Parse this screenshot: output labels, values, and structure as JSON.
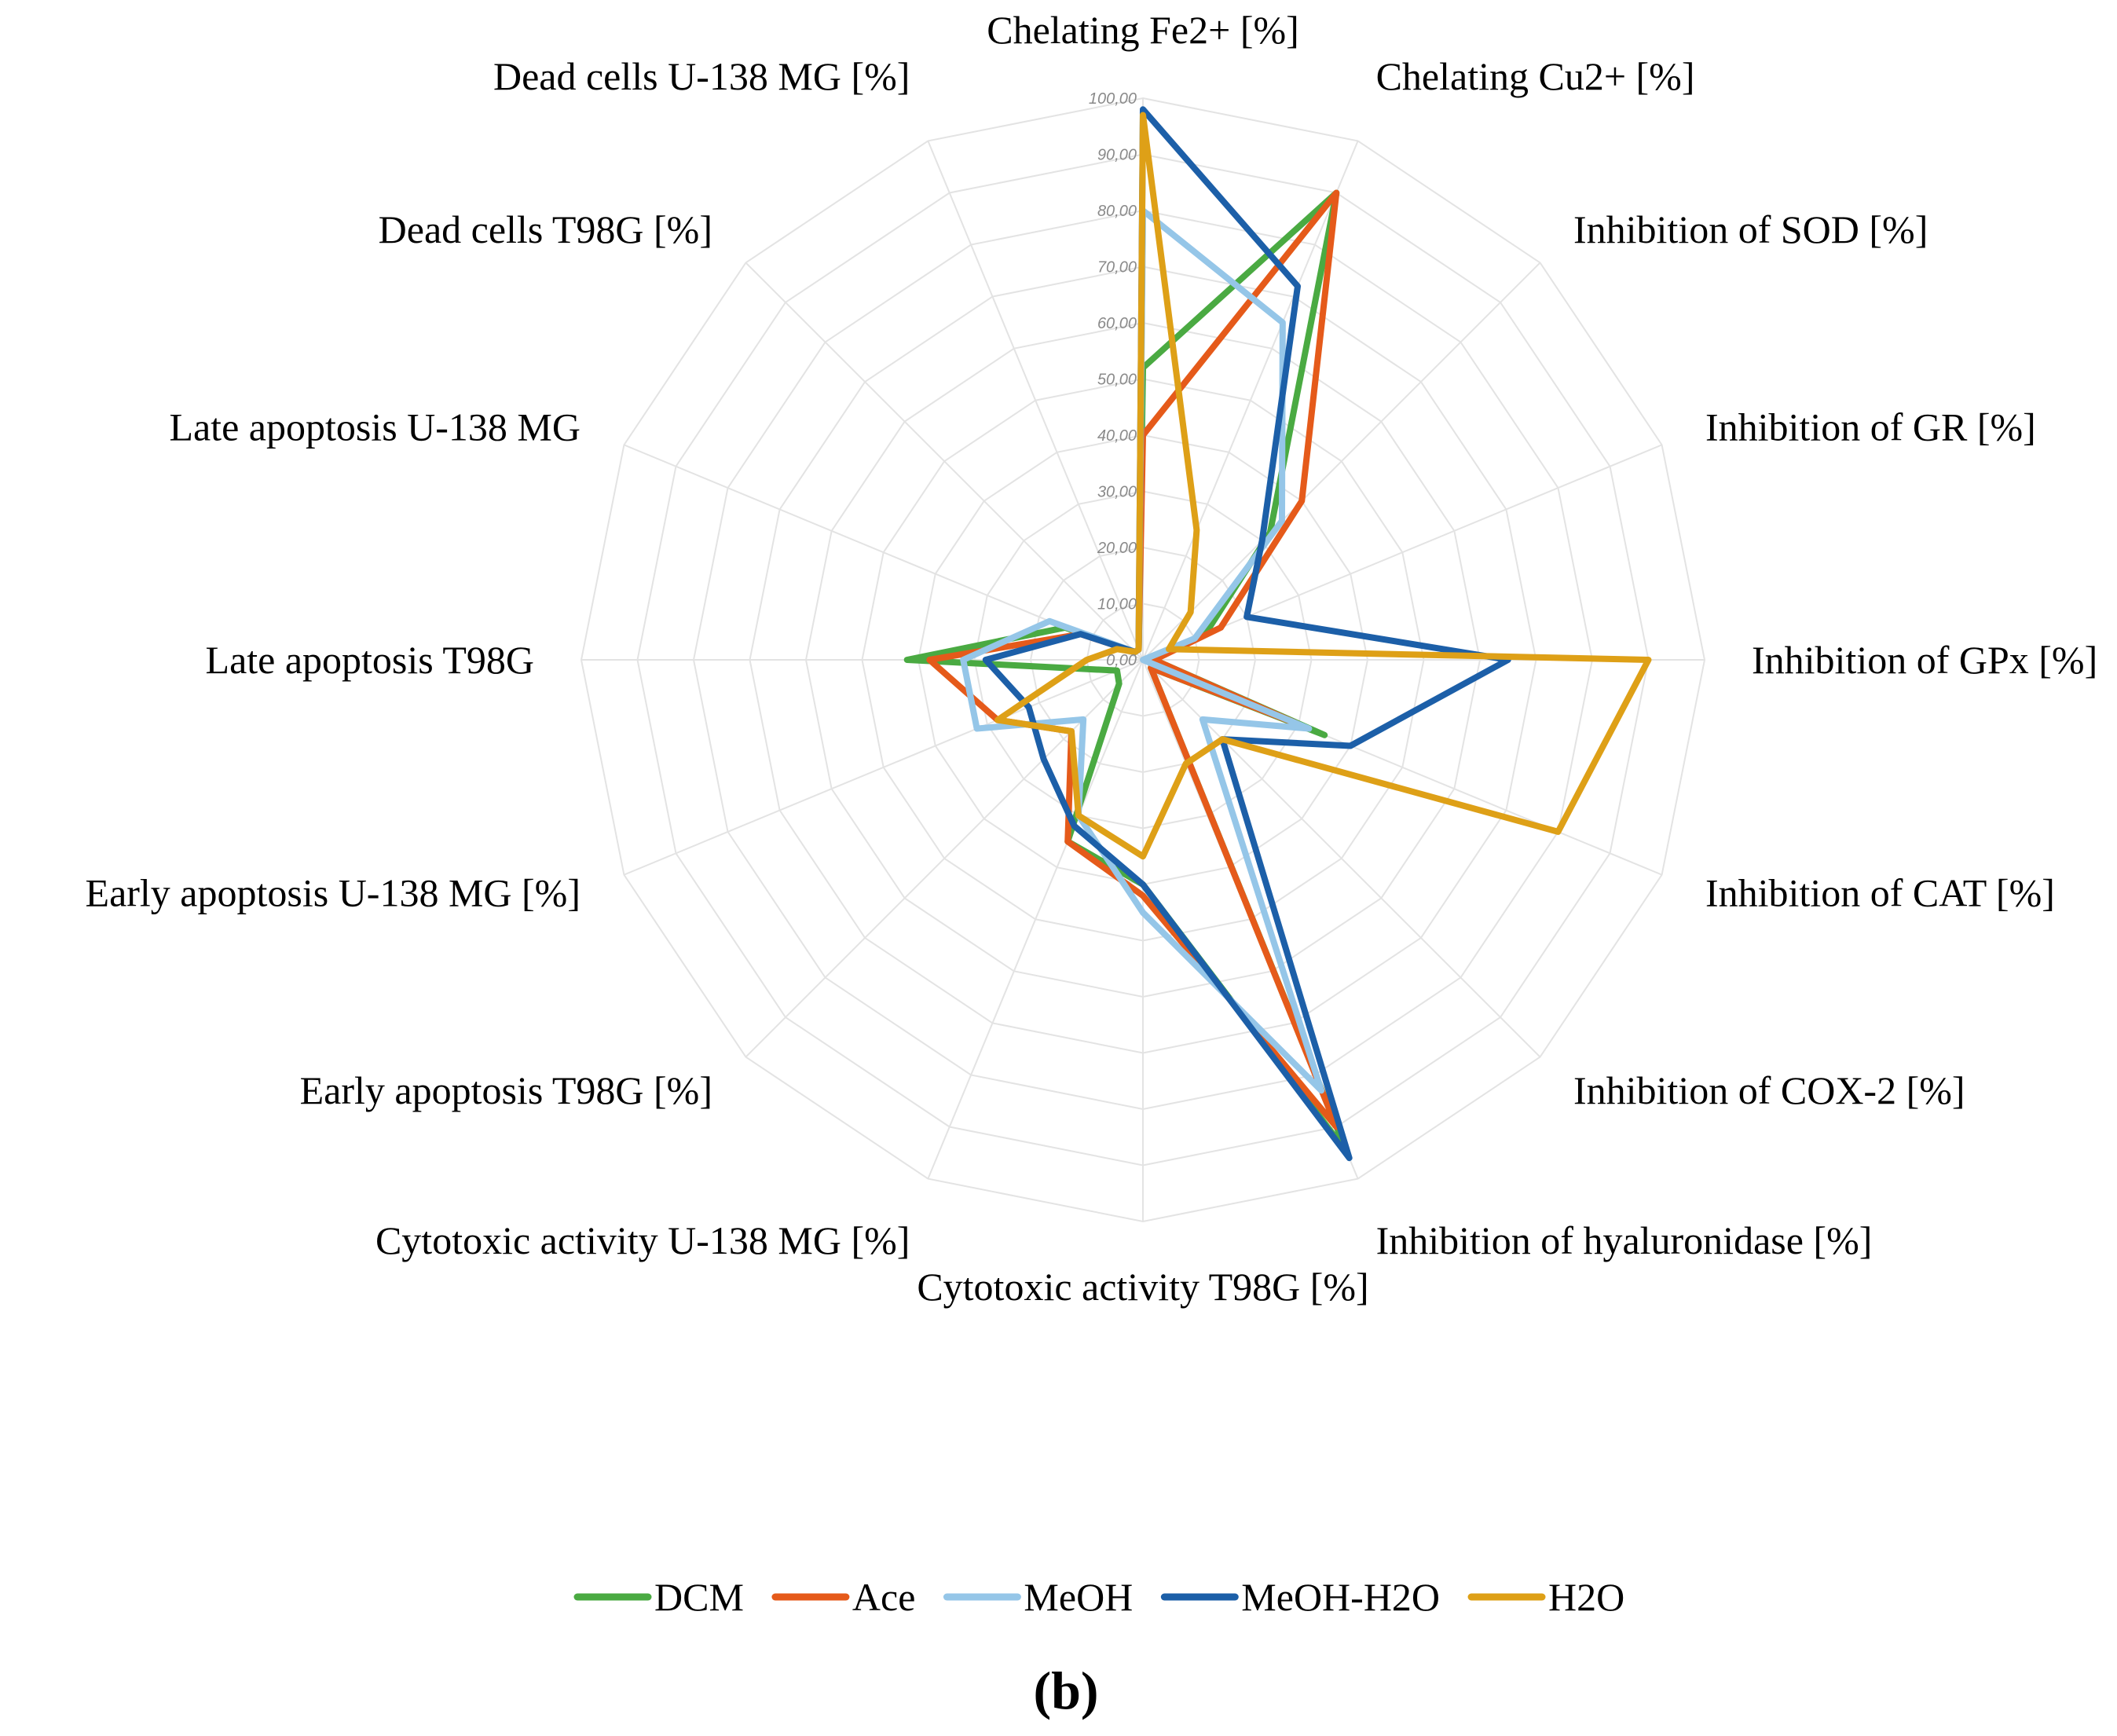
{
  "chart_data": {
    "type": "radar",
    "title": "",
    "panel_label": "(b)",
    "axes": [
      "Chelating Fe2+ [%]",
      "Chelating Cu2+ [%]",
      "Inhibition of SOD [%]",
      "Inhibition of GR [%]",
      "Inhibition of GPx [%]",
      "Inhibition of CAT [%]",
      "Inhibition of COX-2 [%]",
      "Inhibition of hyaluronidase [%]",
      "Cytotoxic  activity T98G [%]",
      "Cytotoxic activity U-138 MG [%]",
      "Early apoptosis T98G [%]",
      "Early apoptosis U-138 MG [%]",
      "Late apoptosis T98G",
      "Late apoptosis U-138 MG",
      "Dead cells T98G [%]",
      "Dead cells U-138 MG [%]"
    ],
    "rlim": [
      0,
      100
    ],
    "ticks": [
      "0,00",
      "10,00",
      "20,00",
      "30,00",
      "40,00",
      "50,00",
      "60,00",
      "70,00",
      "80,00",
      "90,00",
      "100,00"
    ],
    "tick_values": [
      0,
      10,
      20,
      30,
      40,
      50,
      60,
      70,
      80,
      90,
      100
    ],
    "legend_position": "bottom",
    "series": [
      {
        "name": "DCM",
        "color": "#4aaa42",
        "values": [
          52,
          90,
          32,
          12,
          2,
          35,
          2,
          95,
          40,
          35,
          6,
          5,
          42,
          15,
          2,
          2
        ]
      },
      {
        "name": "Ace",
        "color": "#e55a1a",
        "values": [
          40,
          90,
          40,
          15,
          2,
          30,
          2,
          90,
          42,
          35,
          18,
          28,
          38,
          12,
          2,
          2
        ]
      },
      {
        "name": "MeOH",
        "color": "#95c6e8",
        "values": [
          80,
          65,
          35,
          10,
          0,
          32,
          15,
          83,
          45,
          30,
          15,
          32,
          32,
          18,
          2,
          2
        ]
      },
      {
        "name": "MeOH-H2O",
        "color": "#1c5fa8",
        "values": [
          98,
          72,
          30,
          20,
          65,
          40,
          20,
          96,
          40,
          32,
          25,
          22,
          28,
          12,
          2,
          2
        ]
      },
      {
        "name": "H2O",
        "color": "#dea017",
        "values": [
          97,
          25,
          12,
          5,
          90,
          80,
          20,
          20,
          35,
          30,
          18,
          28,
          10,
          5,
          2,
          2
        ]
      }
    ]
  }
}
